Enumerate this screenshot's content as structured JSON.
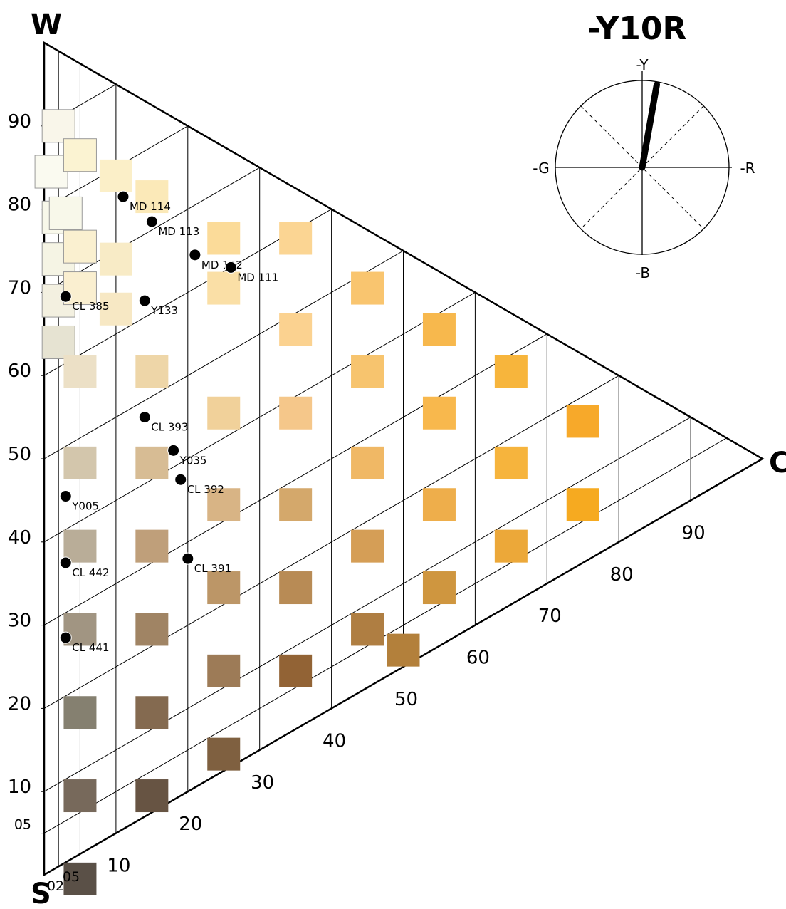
{
  "title": "-Y10R",
  "vertices": {
    "white": "W",
    "black": "S",
    "chromatic": "C"
  },
  "hue_circle": {
    "top": "-Y",
    "bottom": "-B",
    "left": "-G",
    "right": "-R",
    "needle_angle_deg": 10
  },
  "axis_labels": {
    "whiteness_ticks": [
      {
        "label": "05",
        "value": 5
      },
      {
        "label": "10",
        "value": 10
      },
      {
        "label": "20",
        "value": 20
      },
      {
        "label": "30",
        "value": 30
      },
      {
        "label": "40",
        "value": 40
      },
      {
        "label": "50",
        "value": 50
      },
      {
        "label": "60",
        "value": 60
      },
      {
        "label": "70",
        "value": 70
      },
      {
        "label": "80",
        "value": 80
      },
      {
        "label": "90",
        "value": 90
      }
    ],
    "chromaticness_ticks": [
      {
        "label": "02",
        "value": 2
      },
      {
        "label": "05",
        "value": 5
      },
      {
        "label": "10",
        "value": 10
      },
      {
        "label": "20",
        "value": 20
      },
      {
        "label": "30",
        "value": 30
      },
      {
        "label": "40",
        "value": 40
      },
      {
        "label": "50",
        "value": 50
      },
      {
        "label": "60",
        "value": 60
      },
      {
        "label": "70",
        "value": 70
      },
      {
        "label": "80",
        "value": 80
      },
      {
        "label": "90",
        "value": 90
      }
    ]
  },
  "chart_data": {
    "type": "scatter",
    "swatches": [
      {
        "c": 2,
        "w": 89,
        "color": "#f9f6ea"
      },
      {
        "c": 1,
        "w": 84,
        "color": "#fafaf0"
      },
      {
        "c": 2,
        "w": 78,
        "color": "#f8f8ea"
      },
      {
        "c": 3,
        "w": 78,
        "color": "#f8f8ea"
      },
      {
        "c": 2,
        "w": 73,
        "color": "#f5f4e4"
      },
      {
        "c": 2,
        "w": 68,
        "color": "#f3f0e0"
      },
      {
        "c": 2,
        "w": 63,
        "color": "#e6e3d2"
      },
      {
        "c": 5,
        "w": 84,
        "color": "#fbf3d2"
      },
      {
        "c": 5,
        "w": 73,
        "color": "#faf0d0"
      },
      {
        "c": 5,
        "w": 68,
        "color": "#faefd0"
      },
      {
        "c": 5,
        "w": 58,
        "color": "#ece0c6"
      },
      {
        "c": 5,
        "w": 47,
        "color": "#d3c6ac"
      },
      {
        "c": 5,
        "w": 37,
        "color": "#b9ad98"
      },
      {
        "c": 5,
        "w": 27,
        "color": "#a19582"
      },
      {
        "c": 5,
        "w": 17,
        "color": "#858070"
      },
      {
        "c": 5,
        "w": 7,
        "color": "#77695b"
      },
      {
        "c": 5,
        "w": -3,
        "color": "#5a5047"
      },
      {
        "c": 10,
        "w": 79,
        "color": "#fbefc8"
      },
      {
        "c": 10,
        "w": 69,
        "color": "#f8ebc6"
      },
      {
        "c": 10,
        "w": 63,
        "color": "#f7e8c4"
      },
      {
        "c": 15,
        "w": 74,
        "color": "#fbe9b8"
      },
      {
        "c": 15,
        "w": 53,
        "color": "#eed6a8"
      },
      {
        "c": 15,
        "w": 42,
        "color": "#d7bc94"
      },
      {
        "c": 15,
        "w": 32,
        "color": "#bf9f7a"
      },
      {
        "c": 15,
        "w": 22,
        "color": "#a08464"
      },
      {
        "c": 15,
        "w": 12,
        "color": "#846a50"
      },
      {
        "c": 15,
        "w": 2,
        "color": "#675443"
      },
      {
        "c": 25,
        "w": 64,
        "color": "#fbdb99"
      },
      {
        "c": 25,
        "w": 58,
        "color": "#fadfa6"
      },
      {
        "c": 25,
        "w": 43,
        "color": "#f1d19a"
      },
      {
        "c": 25,
        "w": 32,
        "color": "#d8b485"
      },
      {
        "c": 25,
        "w": 22,
        "color": "#bc9667"
      },
      {
        "c": 25,
        "w": 12,
        "color": "#9d7b57"
      },
      {
        "c": 25,
        "w": 2,
        "color": "#7f6040"
      },
      {
        "c": 35,
        "w": 59,
        "color": "#fbd593"
      },
      {
        "c": 35,
        "w": 48,
        "color": "#fbd290"
      },
      {
        "c": 35,
        "w": 38,
        "color": "#f5c78a"
      },
      {
        "c": 35,
        "w": 27,
        "color": "#d4a86b"
      },
      {
        "c": 35,
        "w": 17,
        "color": "#b88b55"
      },
      {
        "c": 35,
        "w": 7,
        "color": "#926335"
      },
      {
        "c": 45,
        "w": 48,
        "color": "#f9c56f"
      },
      {
        "c": 45,
        "w": 38,
        "color": "#f7c46e"
      },
      {
        "c": 45,
        "w": 27,
        "color": "#f0b865"
      },
      {
        "c": 45,
        "w": 17,
        "color": "#d59e56"
      },
      {
        "c": 45,
        "w": 7,
        "color": "#af7e42"
      },
      {
        "c": 50,
        "w": 2,
        "color": "#b3803b"
      },
      {
        "c": 55,
        "w": 38,
        "color": "#f7b84d"
      },
      {
        "c": 55,
        "w": 28,
        "color": "#f8b84d"
      },
      {
        "c": 55,
        "w": 17,
        "color": "#eeae4b"
      },
      {
        "c": 55,
        "w": 7,
        "color": "#cf963f"
      },
      {
        "c": 65,
        "w": 28,
        "color": "#f7b53c"
      },
      {
        "c": 65,
        "w": 17,
        "color": "#f6b43d"
      },
      {
        "c": 65,
        "w": 7,
        "color": "#eca839"
      },
      {
        "c": 75,
        "w": 17,
        "color": "#f7a92a"
      },
      {
        "c": 75,
        "w": 7,
        "color": "#f6aa20"
      }
    ],
    "samples": [
      {
        "name": "MD 114",
        "c": 11,
        "w": 76
      },
      {
        "name": "MD 113",
        "c": 15,
        "w": 71
      },
      {
        "name": "MD 112",
        "c": 21,
        "w": 64
      },
      {
        "name": "MD 111",
        "c": 26,
        "w": 60
      },
      {
        "name": "Y133",
        "c": 14,
        "w": 62
      },
      {
        "name": "CL 385",
        "c": 3,
        "w": 68
      },
      {
        "name": "CL 393",
        "c": 14,
        "w": 48
      },
      {
        "name": "Y035",
        "c": 18,
        "w": 42
      },
      {
        "name": "Y005",
        "c": 3,
        "w": 44
      },
      {
        "name": "CL 392",
        "c": 19,
        "w": 38
      },
      {
        "name": "CL 442",
        "c": 3,
        "w": 36
      },
      {
        "name": "CL 391",
        "c": 20,
        "w": 28
      },
      {
        "name": "CL 441",
        "c": 3,
        "w": 27
      }
    ]
  }
}
